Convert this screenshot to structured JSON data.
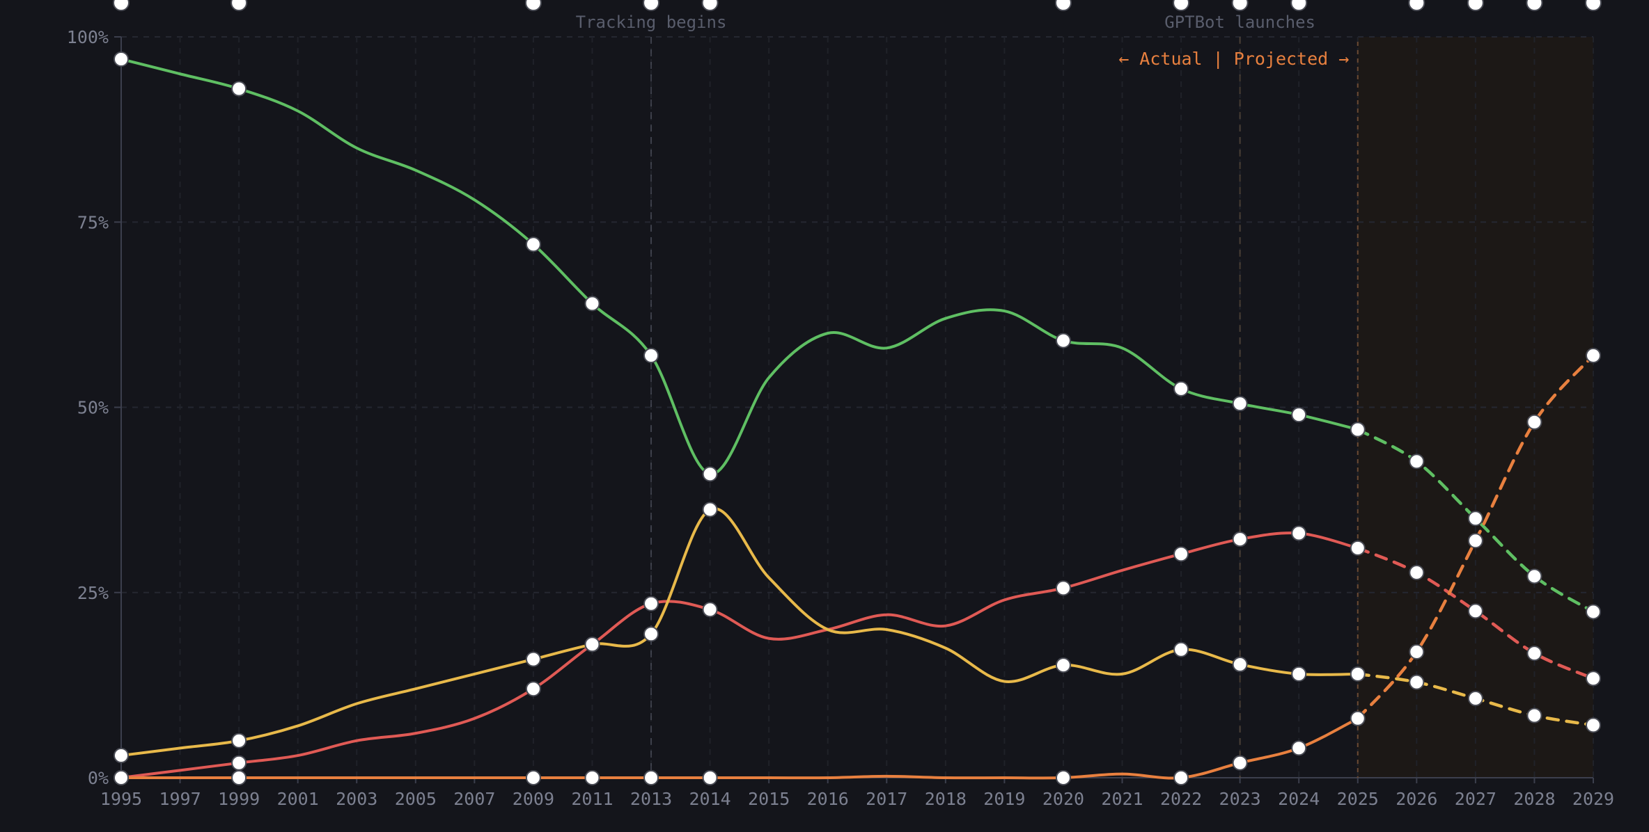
{
  "chart_data": {
    "type": "line",
    "title": "",
    "xlabel": "",
    "ylabel": "",
    "x": [
      "1995",
      "1997",
      "1999",
      "2001",
      "2003",
      "2005",
      "2007",
      "2009",
      "2011",
      "2013",
      "2014",
      "2015",
      "2016",
      "2017",
      "2018",
      "2019",
      "2020",
      "2021",
      "2022",
      "2023",
      "2024",
      "2025",
      "2026",
      "2027",
      "2028",
      "2029"
    ],
    "ylim": [
      0,
      100
    ],
    "y_ticks": [
      "0%",
      "25%",
      "50%",
      "75%",
      "100%"
    ],
    "grid": true,
    "legend": "none",
    "actual_last_x": "2025",
    "split_label": "← Actual | Projected →",
    "annotations": [
      {
        "x": "2013",
        "label": "Tracking begins",
        "color": "#595d6c"
      },
      {
        "x": "2023",
        "label": "GPTBot launches",
        "color": "#6e5a44"
      }
    ],
    "series": [
      {
        "color": "#5fbf63",
        "values": [
          97,
          95,
          93,
          90,
          85,
          82,
          78,
          72,
          64,
          57,
          41,
          54,
          60,
          58,
          62,
          63,
          59,
          58,
          52.5,
          50.5,
          49,
          47,
          42.7,
          35,
          27.2,
          22.4
        ],
        "markers": [
          "1995",
          "1999",
          "2009",
          "2011",
          "2013",
          "2014",
          "2020",
          "2022",
          "2023",
          "2024",
          "2025",
          "2026",
          "2027",
          "2028",
          "2029"
        ]
      },
      {
        "color": "#e05a55",
        "values": [
          0,
          1,
          2,
          3,
          5,
          6,
          8,
          12,
          18,
          23.5,
          22.7,
          18.8,
          20,
          22,
          20.5,
          24,
          25.6,
          28,
          30.2,
          32.2,
          33,
          31,
          27.7,
          22.5,
          16.8,
          13.4
        ],
        "markers": [
          "1995",
          "1999",
          "2009",
          "2011",
          "2013",
          "2014",
          "2020",
          "2022",
          "2023",
          "2024",
          "2025",
          "2026",
          "2027",
          "2028",
          "2029"
        ]
      },
      {
        "color": "#e8b94a",
        "values": [
          3,
          4,
          5,
          7,
          10,
          12,
          14,
          16,
          18,
          19.4,
          36.2,
          27,
          20,
          20,
          17.5,
          13,
          15.2,
          14,
          17.3,
          15.3,
          14,
          14,
          12.9,
          10.7,
          8.4,
          7.1
        ],
        "markers": [
          "1995",
          "1999",
          "2009",
          "2011",
          "2013",
          "2014",
          "2020",
          "2022",
          "2023",
          "2024",
          "2025",
          "2026",
          "2027",
          "2028",
          "2029"
        ]
      },
      {
        "color": "#e8803f",
        "values": [
          0,
          0,
          0,
          0,
          0,
          0,
          0,
          0,
          0,
          0,
          0,
          0,
          0,
          0.2,
          0,
          0,
          0,
          0.5,
          0,
          2,
          4,
          8,
          17,
          32,
          48,
          57
        ],
        "markers": [
          "1995",
          "1999",
          "2009",
          "2011",
          "2013",
          "2014",
          "2020",
          "2022",
          "2023",
          "2024",
          "2025",
          "2026",
          "2027",
          "2028",
          "2029"
        ]
      }
    ]
  }
}
